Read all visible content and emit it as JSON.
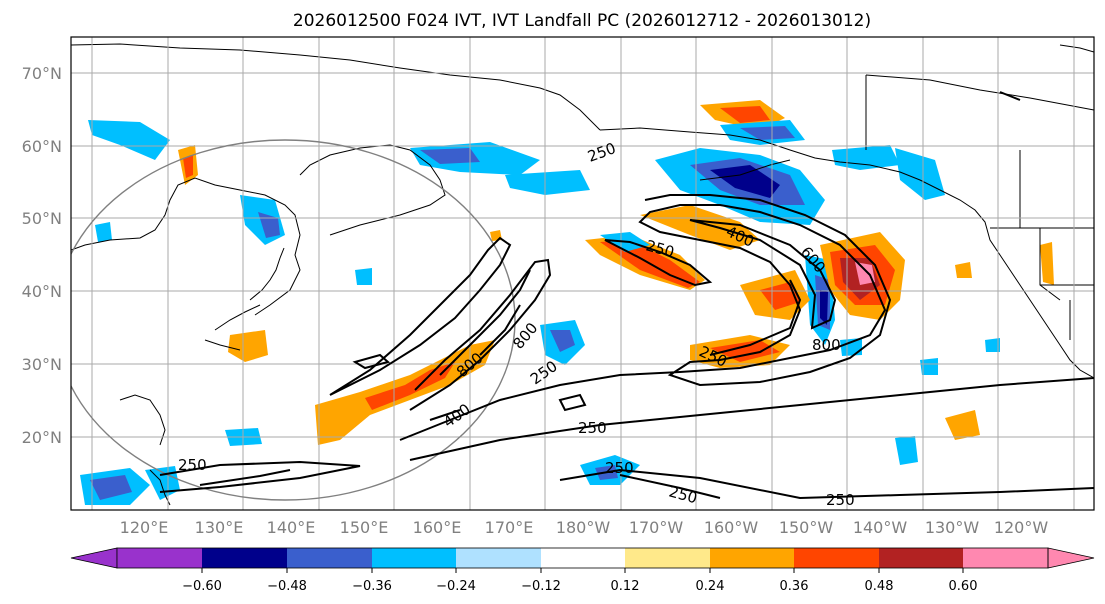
{
  "title": "2026012500 F024 IVT, IVT Landfall PC (2026012712 - 2026013012)",
  "lat_labels": [
    "70°N",
    "60°N",
    "50°N",
    "40°N",
    "30°N",
    "20°N"
  ],
  "lon_labels": [
    "120°E",
    "130°E",
    "140°E",
    "150°E",
    "160°E",
    "170°E",
    "180°W",
    "170°W",
    "160°W",
    "150°W",
    "140°W",
    "130°W",
    "120°W"
  ],
  "colorbar": {
    "colors": [
      "#9932cc",
      "#00008b",
      "#3a5fcd",
      "#00bfff",
      "#afe1ff",
      "#ffffff",
      "#ffe98a",
      "#ffa500",
      "#ff4500",
      "#b22222",
      "#ff88b0",
      "#ff88b0"
    ],
    "ticks": [
      "−0.60",
      "−0.48",
      "−0.36",
      "−0.24",
      "−0.12",
      "0.12",
      "0.24",
      "0.36",
      "0.48",
      "0.60"
    ]
  },
  "contour_labels": [
    "250",
    "250",
    "250",
    "250",
    "250",
    "250",
    "250",
    "250",
    "250",
    "400",
    "400",
    "600",
    "800",
    "800",
    "800"
  ]
}
